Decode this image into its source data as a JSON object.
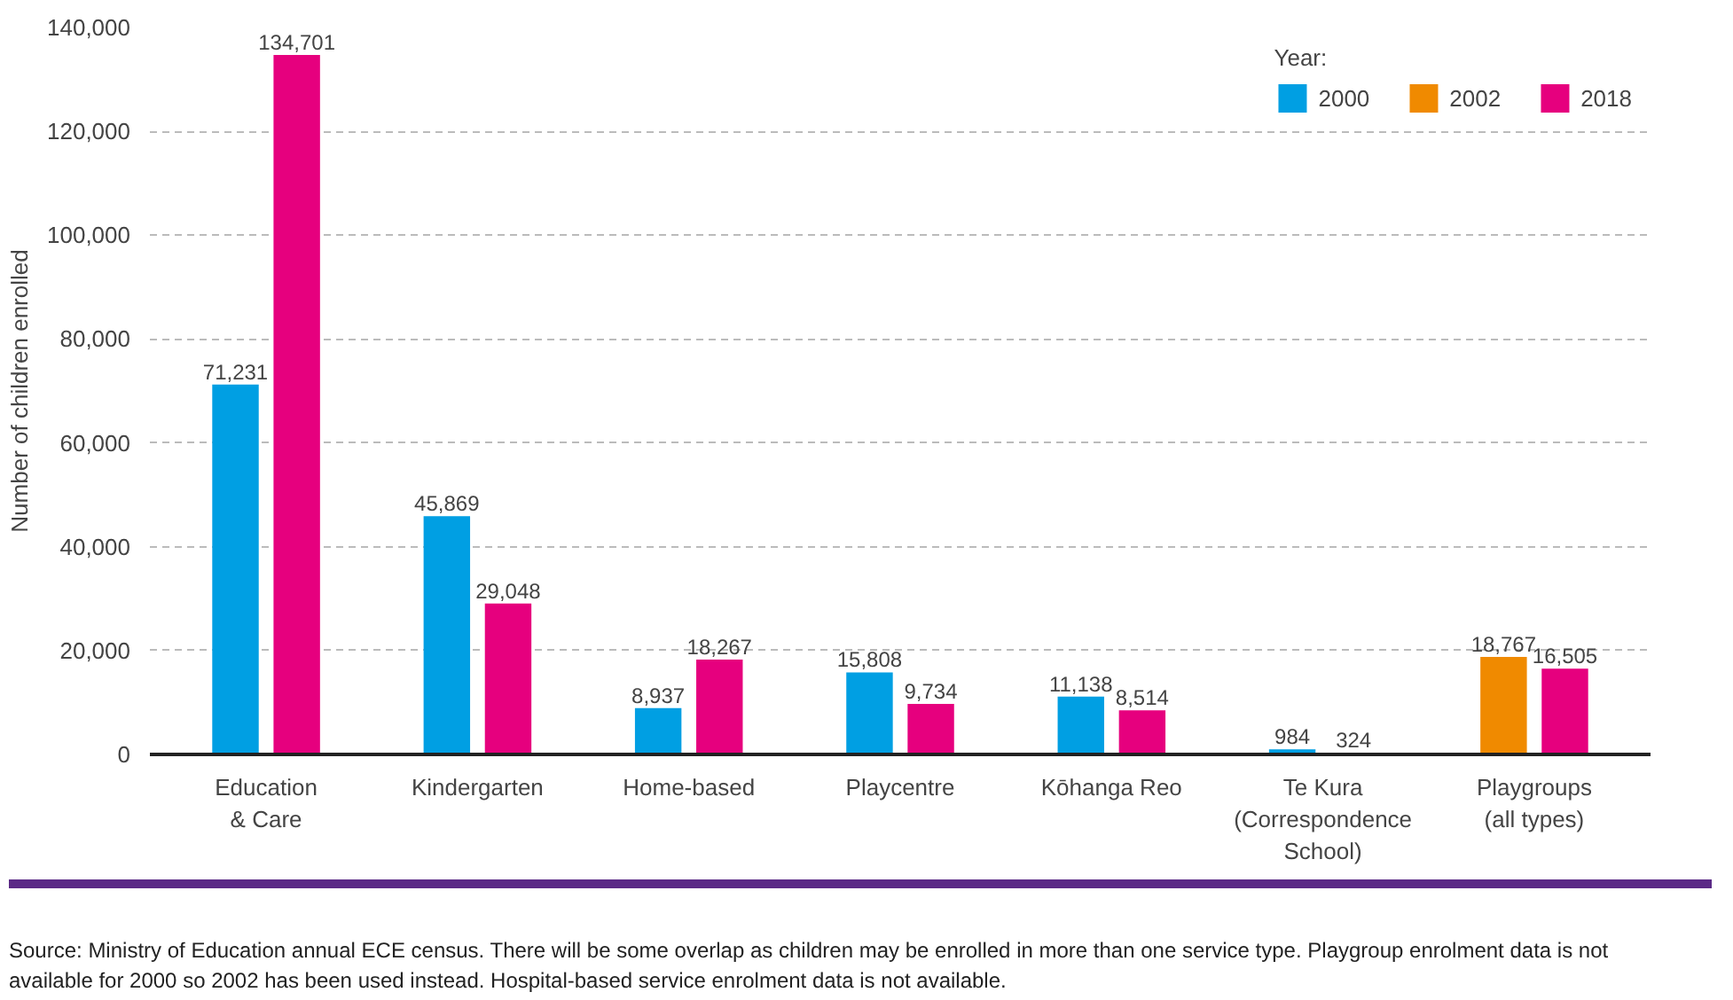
{
  "chart_data": {
    "type": "bar",
    "ylabel": "Number of children enrolled",
    "legend_title": "Year:",
    "categories": [
      "Education\n& Care",
      "Kindergarten",
      "Home-based",
      "Playcentre",
      "Kōhanga Reo",
      "Te Kura\n(Correspondence\nSchool)",
      "Playgroups\n(all types)"
    ],
    "series": [
      {
        "name": "2000",
        "color": "#009fe3",
        "values": [
          71231,
          45869,
          8937,
          15808,
          11138,
          984,
          null
        ],
        "value_labels": [
          "71,231",
          "45,869",
          "8,937",
          "15,808",
          "11,138",
          "984",
          null
        ]
      },
      {
        "name": "2002",
        "color": "#f08a00",
        "values": [
          null,
          null,
          null,
          null,
          null,
          null,
          18767
        ],
        "value_labels": [
          null,
          null,
          null,
          null,
          null,
          null,
          "18,767"
        ]
      },
      {
        "name": "2018",
        "color": "#e6007e",
        "values": [
          134701,
          29048,
          18267,
          9734,
          8514,
          324,
          16505
        ],
        "value_labels": [
          "134,701",
          "29,048",
          "18,267",
          "9,734",
          "8,514",
          "324",
          "16,505"
        ]
      }
    ],
    "ylim": [
      0,
      140000
    ],
    "yticks": [
      {
        "value": 0,
        "label": "0"
      },
      {
        "value": 20000,
        "label": "20,000"
      },
      {
        "value": 40000,
        "label": "40,000"
      },
      {
        "value": 60000,
        "label": "60,000"
      },
      {
        "value": 80000,
        "label": "80,000"
      },
      {
        "value": 100000,
        "label": "100,000"
      },
      {
        "value": 120000,
        "label": "120,000"
      },
      {
        "value": 140000,
        "label": "140,000"
      }
    ],
    "grid": "y",
    "legend": "top right",
    "annotations": [
      "Source: Ministry of Education annual ECE census. There will be some overlap as children may be enrolled in more than one service type. Playgroup enrolment data is not available for 2000 so 2002 has been used instead. Hospital-based service enrolment data is not available."
    ]
  }
}
